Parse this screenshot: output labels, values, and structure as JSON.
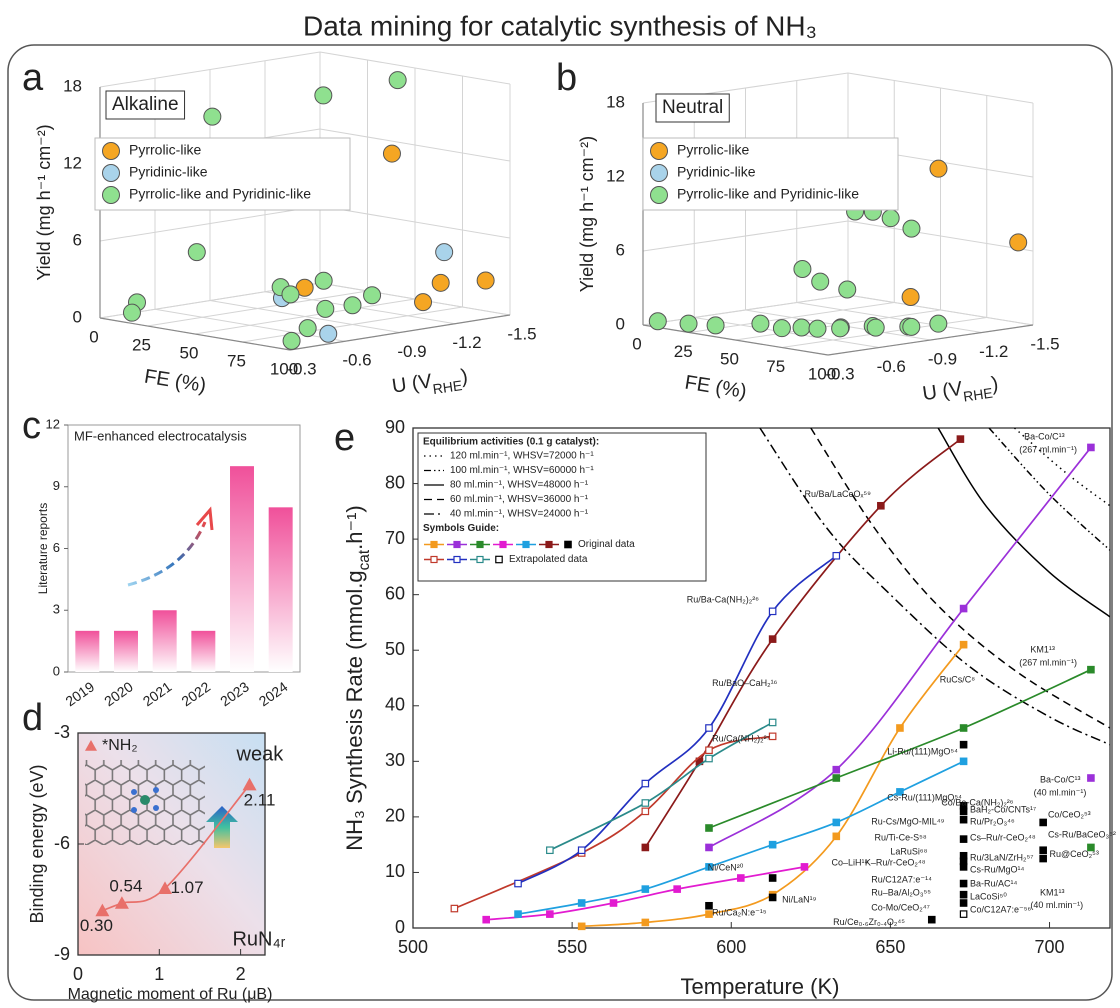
{
  "title": "Data mining for catalytic synthesis of NH₃",
  "chart_data": [
    {
      "panel": "a",
      "type": "scatter3d",
      "box_label": "Alkaline",
      "grid": true,
      "xlabel": "FE (%)",
      "ylabel_parts": [
        "U (V",
        "RHE",
        ")"
      ],
      "zlabel": "Yield (mg h⁻¹ cm⁻²)",
      "xlim": [
        0,
        100
      ],
      "xticks": [
        0,
        25,
        50,
        75,
        100
      ],
      "ylim": [
        -0.3,
        -1.5
      ],
      "yticks": [
        -0.3,
        -0.6,
        -0.9,
        -1.2,
        -1.5
      ],
      "zlim": [
        0,
        18
      ],
      "zticks": [
        0,
        6,
        12,
        18
      ],
      "series": [
        {
          "name": "Pyrrolic-like",
          "color": "#f5a623",
          "x": [
            62,
            88,
            78,
            92,
            45
          ],
          "y": [
            -1.25,
            -1.15,
            -1.35,
            -1.45,
            -0.95
          ],
          "z": [
            12.2,
            1.5,
            2.3,
            2.6,
            2.0
          ]
        },
        {
          "name": "Pyridinic-like",
          "color": "#a9d3ea",
          "x": [
            75,
            62,
            96
          ],
          "y": [
            -1.4,
            -0.65,
            -0.55
          ],
          "z": [
            4.5,
            2.3,
            0.6
          ]
        },
        {
          "name": "Pyrrolic-like and Pyridinic-like",
          "color": "#8fe08f",
          "x": [
            35,
            50,
            65,
            48,
            22,
            42,
            55,
            66,
            5,
            12,
            96,
            90,
            75,
            80,
            52
          ],
          "y": [
            -0.55,
            -1.0,
            -1.25,
            -1.05,
            -0.6,
            -0.85,
            -0.95,
            -1.1,
            -0.45,
            -0.35,
            -0.35,
            -0.5,
            -0.9,
            -0.7,
            -0.8
          ],
          "z": [
            16,
            17,
            18,
            9,
            5,
            2.2,
            2.8,
            1.6,
            1,
            0.6,
            0.5,
            1.0,
            1.5,
            1.8,
            2.0
          ]
        }
      ]
    },
    {
      "panel": "b",
      "type": "scatter3d",
      "box_label": "Neutral",
      "grid": true,
      "xlabel": "FE (%)",
      "ylabel_parts": [
        "U (V",
        "RHE",
        ")"
      ],
      "zlabel": "Yield (mg h⁻¹ cm⁻²)",
      "xlim": [
        0,
        100
      ],
      "xticks": [
        0,
        25,
        50,
        75,
        100
      ],
      "ylim": [
        -0.3,
        -1.5
      ],
      "yticks": [
        -0.3,
        -0.6,
        -0.9,
        -1.2,
        -1.5
      ],
      "zlim": [
        0,
        18
      ],
      "zticks": [
        0,
        6,
        12,
        18
      ],
      "series": [
        {
          "name": "Pyrrolic-like",
          "color": "#f5a623",
          "x": [
            72,
            92,
            80
          ],
          "y": [
            -1.25,
            -1.5,
            -1.0
          ],
          "z": [
            12.5,
            6.5,
            2.8
          ]
        },
        {
          "name": "Pyridinic-like",
          "color": "#a9d3ea",
          "x": [],
          "y": [],
          "z": []
        },
        {
          "name": "Pyrrolic-like and Pyridinic-like",
          "color": "#8fe08f",
          "x": [
            50,
            55,
            60,
            62,
            40,
            45,
            55,
            8,
            20,
            30,
            45,
            52,
            58,
            62,
            70,
            78,
            88,
            95,
            85,
            75,
            65
          ],
          "y": [
            -1.0,
            -1.05,
            -1.1,
            -1.2,
            -0.8,
            -0.85,
            -0.9,
            -0.3,
            -0.35,
            -0.4,
            -0.5,
            -0.55,
            -0.6,
            -0.65,
            -0.7,
            -0.8,
            -0.9,
            -1.0,
            -0.95,
            -0.85,
            -0.75
          ],
          "z": [
            9,
            9,
            8.5,
            7.5,
            4.5,
            3.5,
            3,
            0.5,
            0.5,
            0.5,
            0.8,
            0.5,
            0.6,
            0.5,
            0.7,
            0.8,
            0.8,
            1.0,
            0.6,
            0.5,
            0.4
          ]
        }
      ]
    },
    {
      "panel": "c",
      "type": "bar",
      "title": "MF-enhanced electrocatalysis",
      "ylabel": "Literature reports",
      "categories": [
        "2019",
        "2020",
        "2021",
        "2022",
        "2023",
        "2024"
      ],
      "values": [
        2,
        2,
        3,
        2,
        10,
        8
      ],
      "color": "#f0509a",
      "ylim": [
        0,
        12
      ],
      "yticks": [
        0,
        3,
        6,
        9,
        12
      ]
    },
    {
      "panel": "d",
      "type": "line",
      "xlabel": "Magnetic moment of Ru (μB)",
      "ylabel": "Binding energy (eV)",
      "xlim": [
        0,
        2.3
      ],
      "xticks": [
        0,
        1,
        2
      ],
      "ylim": [
        -9,
        -3
      ],
      "yticks": [
        -9,
        -6,
        -3
      ],
      "series": [
        {
          "name": "*NH₂",
          "color": "#e8706a",
          "marker": "triangle",
          "x": [
            0.3,
            0.54,
            1.07,
            2.11
          ],
          "values": [
            -7.8,
            -7.6,
            -7.2,
            -4.4
          ],
          "x_labels": [
            "0.30",
            "0.54",
            "1.07",
            "2.11"
          ]
        }
      ],
      "annotations": [
        {
          "text": "weak",
          "x": 1.95,
          "y": -3.6,
          "color": "#222"
        },
        {
          "text": "RuN₄ᵣ",
          "x": 1.9,
          "y": -8.6,
          "color": "#222"
        }
      ]
    },
    {
      "panel": "e",
      "type": "line",
      "xlabel": "Temperature (K)",
      "ylabel_parts": [
        "NH₃ Synthesis Rate (mmol.g",
        "cat",
        ".h⁻¹)"
      ],
      "xlim": [
        500,
        719
      ],
      "xticks": [
        500,
        550,
        600,
        650,
        700
      ],
      "ylim": [
        0,
        90
      ],
      "yticks": [
        0,
        10,
        20,
        30,
        40,
        50,
        60,
        70,
        80,
        90
      ],
      "legend_title": "Equilibrium activities (0.1 g catalyst):",
      "symbols_title": "Symbols Guide:",
      "series": [
        {
          "name": "120 ml.min⁻¹, WHSV=72000 h⁻¹",
          "dash": "dotted",
          "color": "#000",
          "x": [
            689,
            705,
            719
          ],
          "values": [
            90,
            82,
            76
          ]
        },
        {
          "name": "100 ml.min⁻¹, WHSV=60000 h⁻¹",
          "dash": "dashdotdot",
          "color": "#000",
          "x": [
            681,
            700,
            719
          ],
          "values": [
            90,
            78,
            68
          ]
        },
        {
          "name": "80 ml.min⁻¹, WHSV=48000 h⁻¹",
          "dash": "solid",
          "color": "#000",
          "x": [
            665,
            680,
            700,
            719
          ],
          "values": [
            90,
            76,
            64,
            56
          ]
        },
        {
          "name": "60 ml.min⁻¹, WHSV=36000 h⁻¹",
          "dash": "dashed",
          "color": "#000",
          "x": [
            625,
            645,
            665,
            690,
            719
          ],
          "values": [
            90,
            72,
            58,
            46,
            36
          ]
        },
        {
          "name": "40 ml.min⁻¹, WHSV=24000 h⁻¹",
          "dash": "dashdot",
          "color": "#000",
          "x": [
            609,
            630,
            650,
            675,
            700,
            719
          ],
          "values": [
            90,
            72,
            60,
            47,
            38,
            33
          ]
        },
        {
          "marker": "filled",
          "color": "#f39a1e",
          "x": [
            553,
            573,
            593,
            613,
            633,
            653,
            673
          ],
          "values": [
            0.3,
            1,
            2.5,
            6,
            16.5,
            36,
            51
          ]
        },
        {
          "marker": "filled",
          "color": "#9b30d9",
          "x": [
            593,
            633,
            673,
            713
          ],
          "values": [
            14.5,
            28.5,
            57.5,
            86.5
          ]
        },
        {
          "marker": "filled",
          "color": "#2a8a2a",
          "x": [
            593,
            633,
            673,
            713
          ],
          "values": [
            18,
            27,
            36,
            46.5
          ]
        },
        {
          "marker": "filled",
          "color": "#e21bd0",
          "x": [
            523,
            543,
            563,
            583,
            603,
            623
          ],
          "values": [
            1.5,
            2.5,
            4.5,
            7,
            9,
            11
          ]
        },
        {
          "marker": "filled",
          "color": "#1fa0e0",
          "x": [
            533,
            553,
            573,
            593,
            613,
            633,
            653,
            673
          ],
          "values": [
            2.5,
            4.5,
            7,
            11,
            15,
            19,
            24.5,
            30
          ]
        },
        {
          "marker": "filled",
          "color": "#8b1a1a",
          "x": [
            573,
            590,
            613,
            647,
            672
          ],
          "values": [
            14.5,
            30,
            52,
            76,
            88
          ]
        },
        {
          "marker": "open",
          "color": "#c0392b",
          "x": [
            513,
            553,
            573,
            593,
            613
          ],
          "values": [
            3.5,
            13.5,
            21,
            32,
            34.5
          ]
        },
        {
          "marker": "open",
          "color": "#2230c0",
          "x": [
            533,
            553,
            573,
            593,
            613,
            633
          ],
          "values": [
            8,
            14,
            26,
            36,
            57,
            67
          ]
        },
        {
          "marker": "open",
          "color": "#2a8a8a",
          "x": [
            543,
            573,
            593,
            613
          ],
          "values": [
            14,
            22.5,
            30.5,
            37
          ]
        },
        {
          "marker": "filled",
          "line": false,
          "color": "#9b30d9",
          "x": [
            713
          ],
          "values": [
            27
          ]
        },
        {
          "marker": "filled",
          "line": false,
          "color": "#2a8a2a",
          "x": [
            713
          ],
          "values": [
            14.5
          ]
        },
        {
          "name": "Original data",
          "marker": "filled",
          "line": false,
          "color": "#000",
          "x": [
            593,
            613,
            613,
            673,
            673,
            673,
            673,
            673,
            673,
            673,
            673,
            673,
            673,
            673,
            698,
            698,
            698,
            663
          ],
          "values": [
            4,
            9,
            5.5,
            33,
            22,
            21,
            19.5,
            16,
            13,
            12,
            11,
            8,
            6,
            4.5,
            19,
            14,
            12.5,
            1.5
          ]
        },
        {
          "name": "Extrapolated data",
          "marker": "open",
          "line": false,
          "color": "#000",
          "x": [
            673
          ],
          "values": [
            2.5
          ]
        }
      ],
      "annotations": [
        {
          "text": "Ru/Ba/LaCeOₓ⁵⁹",
          "x": 623,
          "y": 78,
          "color": "#8b1a1a"
        },
        {
          "text": "Ba-Co/C¹³",
          "x": 692,
          "y": 88.4,
          "color": "#9b30d9"
        },
        {
          "text": "(267 ml.min⁻¹)",
          "x": 690.5,
          "y": 86,
          "color": "#9b30d9"
        },
        {
          "text": "Ru/Ba-Ca(NH₂)₂²⁶",
          "x": 586,
          "y": 59,
          "color": "#2230c0"
        },
        {
          "text": "Ru/BaO–CaH₂¹⁶",
          "x": 594,
          "y": 44,
          "color": "#2a8a8a"
        },
        {
          "text": "Ru/Ca(NH₂)₂²⁷",
          "x": 594,
          "y": 34,
          "color": "#8b1a1a"
        },
        {
          "text": "KM1¹³",
          "x": 694,
          "y": 50,
          "color": "#2a8a2a"
        },
        {
          "text": "(267 ml.min⁻¹)",
          "x": 690.5,
          "y": 47.7,
          "color": "#2a8a2a"
        },
        {
          "text": "RuCs/C⁸",
          "x": 665.5,
          "y": 44.6,
          "color": "#f39a1e"
        },
        {
          "text": "Ba-Co/C¹³",
          "x": 697,
          "y": 26.6,
          "color": "#9b30d9"
        },
        {
          "text": "(40 ml.min⁻¹)",
          "x": 695,
          "y": 24.3,
          "color": "#9b30d9"
        },
        {
          "text": "Co/Ba-Ca(NH₂)₂²⁶",
          "x": 666,
          "y": 22.5,
          "color": "#1fa0e0"
        },
        {
          "text": "Co–LiH¹⁸",
          "x": 631.5,
          "y": 11.7,
          "color": "#e21bd0"
        },
        {
          "text": "KM1¹³",
          "x": 697,
          "y": 6.3,
          "color": "#2a8a2a"
        },
        {
          "text": "(40 ml.min⁻¹)",
          "x": 694,
          "y": 4,
          "color": "#2a8a2a"
        },
        {
          "text": "Ni/CeN²⁰",
          "x": 592.6,
          "y": 10.8,
          "color": "#000"
        },
        {
          "text": "Ni/LaN¹⁹",
          "x": 616,
          "y": 5,
          "color": "#000"
        },
        {
          "text": "Ru/Ca₂N:e⁻¹⁵",
          "x": 594,
          "y": 2.7,
          "color": "#000"
        },
        {
          "text": "Li-Ru/(111)MgO⁵⁴",
          "x": 649,
          "y": 31.7,
          "color": "#000"
        },
        {
          "text": "Cs-Ru/(111)MgO⁵⁴",
          "x": 649,
          "y": 23.4,
          "color": "#000"
        },
        {
          "text": "BaH₂-Co/CNTs¹⁷",
          "x": 675,
          "y": 21.2,
          "color": "#000"
        },
        {
          "text": "Ru-Cs/MgO-MIL⁴⁹",
          "x": 644,
          "y": 19.1,
          "color": "#000"
        },
        {
          "text": "Ru/Pr₂O₃⁴⁶",
          "x": 675,
          "y": 19.1,
          "color": "#000"
        },
        {
          "text": "Co/CeO₂⁵³",
          "x": 699.5,
          "y": 20.3,
          "color": "#000"
        },
        {
          "text": "Ru/Ti-Ce-S⁵⁸",
          "x": 645,
          "y": 16.2,
          "color": "#000"
        },
        {
          "text": "Cs–Ru/r-CeO₂⁴⁸",
          "x": 675,
          "y": 16.2,
          "color": "#000"
        },
        {
          "text": "Cs-Ru/BaCeO₃⁵²",
          "x": 699.5,
          "y": 16.7,
          "color": "#000"
        },
        {
          "text": "LaRuSi⁶⁸",
          "x": 650,
          "y": 13.7,
          "color": "#000"
        },
        {
          "text": "K–Ru/r-CeO₂⁴⁸",
          "x": 642,
          "y": 11.7,
          "color": "#000"
        },
        {
          "text": "Ru/3LaN/ZrH₂⁵⁷",
          "x": 675,
          "y": 12.6,
          "color": "#000"
        },
        {
          "text": "Ru@CeO₂⁵³",
          "x": 700,
          "y": 13.2,
          "color": "#000"
        },
        {
          "text": "Cs-Ru/MgO¹⁴",
          "x": 675,
          "y": 10.4,
          "color": "#000"
        },
        {
          "text": "Ru/C12A7:e⁻¹⁴",
          "x": 644,
          "y": 8.6,
          "color": "#000"
        },
        {
          "text": "Ba-Ru/AC¹⁴",
          "x": 675,
          "y": 7.9,
          "color": "#000"
        },
        {
          "text": "Ru–Ba/Al₂O₃⁵⁵",
          "x": 644,
          "y": 6.3,
          "color": "#000"
        },
        {
          "text": "LaCoSi⁵⁰",
          "x": 675,
          "y": 5.6,
          "color": "#000"
        },
        {
          "text": "Co-Mo/CeO₂⁴⁷",
          "x": 644,
          "y": 3.6,
          "color": "#000"
        },
        {
          "text": "Co/C12A7:e⁻⁵⁶",
          "x": 675,
          "y": 3.2,
          "color": "#000"
        },
        {
          "text": "Ru/Ce₀.₆Zr₀.₄O₂⁴⁵",
          "x": 632,
          "y": 1.0,
          "color": "#000"
        }
      ]
    }
  ]
}
